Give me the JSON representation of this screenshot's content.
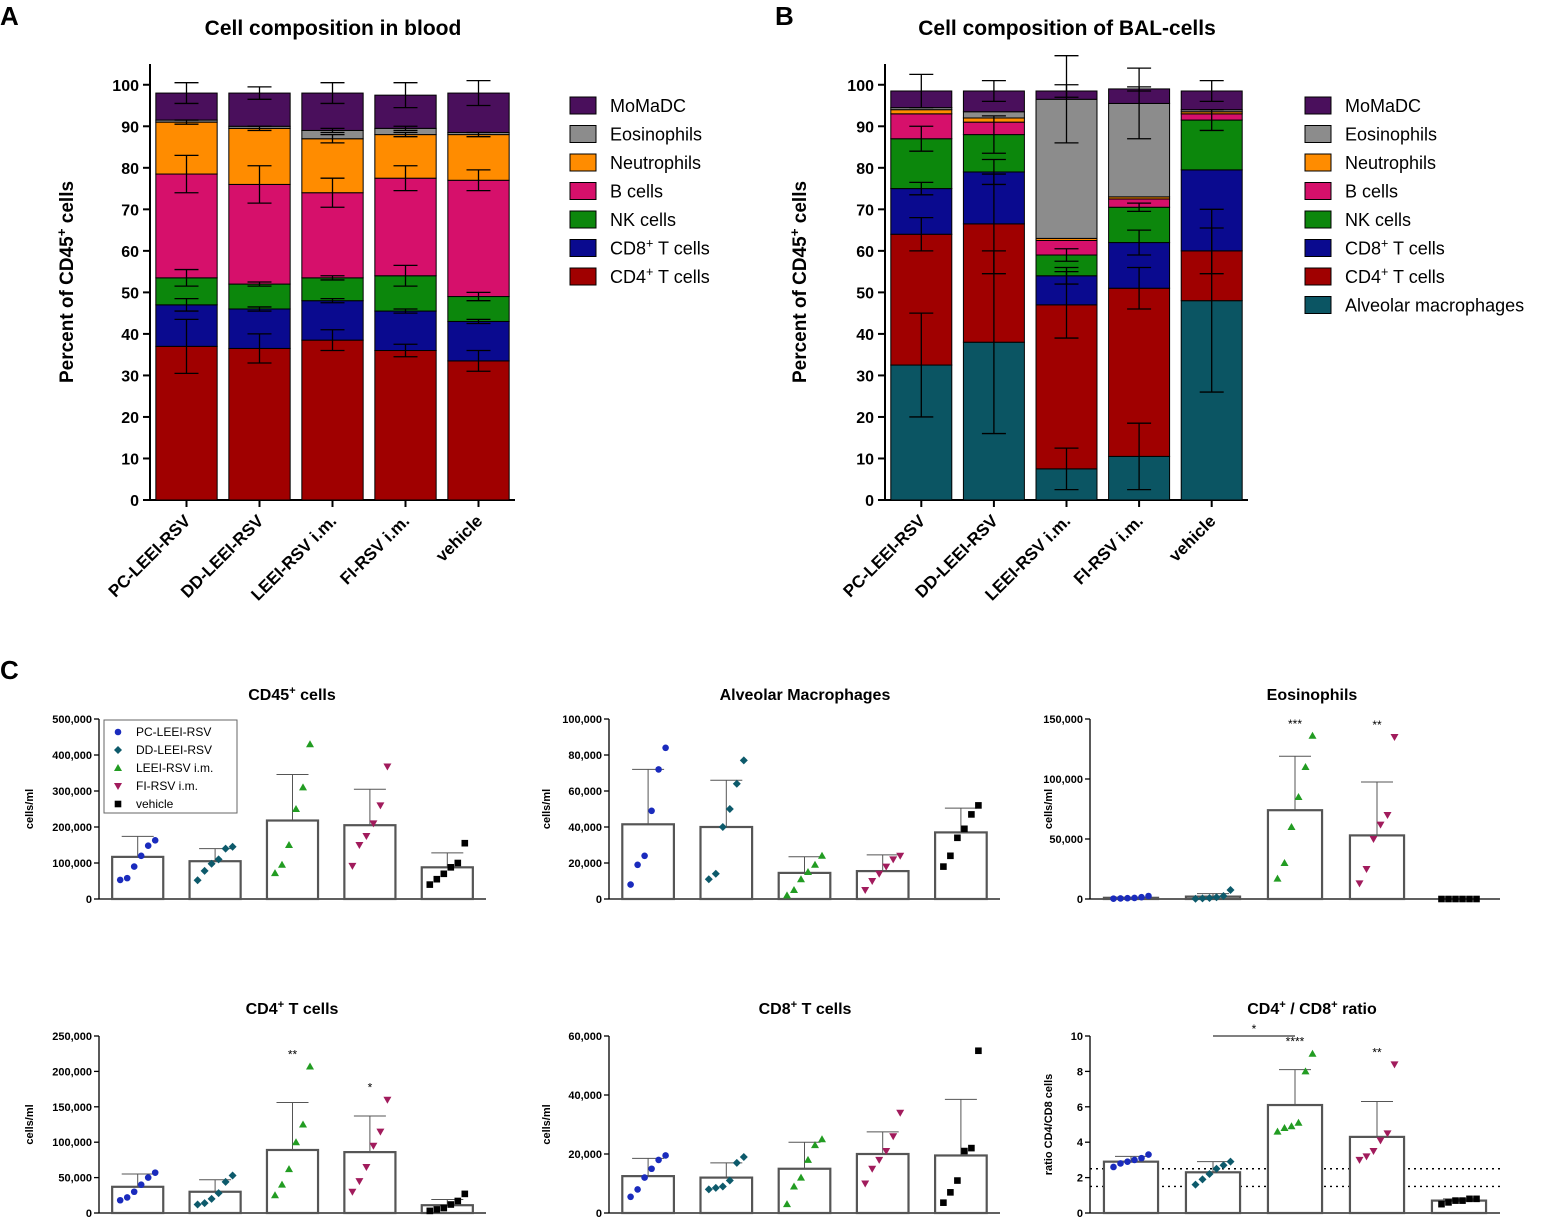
{
  "panels": {
    "A": "A",
    "B": "B",
    "C": "C"
  },
  "colors": {
    "MoMaDC": "#4a0f5c",
    "Eosinophils": "#8c8c8c",
    "Neutrophils": "#ff8c00",
    "B cells": "#d6106b",
    "NK cells": "#0c870c",
    "CD8": "#0a0a8f",
    "CD4": "#a00000",
    "AM": "#0b5563",
    "PC-LEEI-RSV": "#1a2bbd",
    "DD-LEEI-RSV": "#0d5a6b",
    "LEEI-RSV i.m.": "#229c22",
    "FI-RSV i.m.": "#a11b5c",
    "vehicle": "#000000"
  },
  "chart_data": [
    {
      "id": "A",
      "type": "bar",
      "stacked": true,
      "title": "Cell composition in blood",
      "ylabel": "Percent of CD45",
      "ylabel_sup": "+",
      "ylabel_tail": " cells",
      "ylim": [
        0,
        105
      ],
      "yticks": [
        0,
        10,
        20,
        30,
        40,
        50,
        60,
        70,
        80,
        90,
        100
      ],
      "categories": [
        "PC-LEEI-RSV",
        "DD-LEEI-RSV",
        "LEEI-RSV i.m.",
        "FI-RSV i.m.",
        "vehicle"
      ],
      "series": [
        {
          "name": "CD4+ T cells",
          "key": "CD4",
          "values": [
            37,
            36.5,
            38.5,
            36,
            33.5
          ],
          "err": [
            6.5,
            3.5,
            2.5,
            1.5,
            2.5
          ]
        },
        {
          "name": "CD8+ T cells",
          "key": "CD8",
          "values": [
            10,
            9.5,
            9.5,
            9.5,
            9.5
          ],
          "err": [
            1.5,
            0.5,
            0.5,
            0.5,
            0.5
          ]
        },
        {
          "name": "NK cells",
          "key": "NK cells",
          "values": [
            6.5,
            6,
            5.5,
            8.5,
            6
          ],
          "err": [
            2,
            0.5,
            0.5,
            2.5,
            1
          ]
        },
        {
          "name": "B cells",
          "key": "B cells",
          "values": [
            25,
            24,
            20.5,
            23.5,
            28
          ],
          "err": [
            4.5,
            4.5,
            3.5,
            3,
            2.5
          ]
        },
        {
          "name": "Neutrophils",
          "key": "Neutrophils",
          "values": [
            12.5,
            13.5,
            13,
            10.5,
            11
          ],
          "err": [
            0.5,
            0.5,
            1,
            0.5,
            0.5
          ]
        },
        {
          "name": "Eosinophils",
          "key": "Eosinophils",
          "values": [
            0.5,
            0.5,
            2,
            1.5,
            0.5
          ],
          "err": [
            0,
            0,
            0.5,
            0.5,
            0
          ]
        },
        {
          "name": "MoMaDC",
          "key": "MoMaDC",
          "values": [
            6.5,
            8,
            9,
            8,
            9.5
          ],
          "err": [
            2.5,
            1.5,
            2.5,
            3,
            3
          ]
        }
      ],
      "legend": [
        {
          "label": "MoMaDC",
          "sup": "",
          "tail": "",
          "key": "MoMaDC"
        },
        {
          "label": "Eosinophils",
          "sup": "",
          "tail": "",
          "key": "Eosinophils"
        },
        {
          "label": "Neutrophils",
          "sup": "",
          "tail": "",
          "key": "Neutrophils"
        },
        {
          "label": "B cells",
          "sup": "",
          "tail": "",
          "key": "B cells"
        },
        {
          "label": "NK cells",
          "sup": "",
          "tail": "",
          "key": "NK cells"
        },
        {
          "label": "CD8",
          "sup": "+",
          "tail": " T cells",
          "key": "CD8"
        },
        {
          "label": "CD4",
          "sup": "+",
          "tail": " T cells",
          "key": "CD4"
        }
      ]
    },
    {
      "id": "B",
      "type": "bar",
      "stacked": true,
      "title": "Cell composition of BAL-cells",
      "ylabel": "Percent of CD45",
      "ylabel_sup": "+",
      "ylabel_tail": " cells",
      "ylim": [
        0,
        105
      ],
      "yticks": [
        0,
        10,
        20,
        30,
        40,
        50,
        60,
        70,
        80,
        90,
        100
      ],
      "categories": [
        "PC-LEEI-RSV",
        "DD-LEEI-RSV",
        "LEEI-RSV i.m.",
        "FI-RSV i.m.",
        "vehicle"
      ],
      "series": [
        {
          "name": "Alveolar macrophages",
          "key": "AM",
          "values": [
            32.5,
            38,
            7.5,
            10.5,
            48
          ],
          "err": [
            12.5,
            22,
            5,
            8,
            22
          ]
        },
        {
          "name": "CD4+ T cells",
          "key": "CD4",
          "values": [
            31.5,
            28.5,
            39.5,
            40.5,
            12
          ],
          "err": [
            4,
            12,
            8,
            5,
            5.5
          ]
        },
        {
          "name": "CD8+ T cells",
          "key": "CD8",
          "values": [
            11,
            12.5,
            7,
            11,
            19.5
          ],
          "err": [
            1.5,
            3,
            2,
            3,
            0
          ]
        },
        {
          "name": "NK cells",
          "key": "NK cells",
          "values": [
            12,
            9,
            5,
            8.5,
            12
          ],
          "err": [
            3,
            4.5,
            1.5,
            1,
            2.5
          ]
        },
        {
          "name": "B cells",
          "key": "B cells",
          "values": [
            6,
            3,
            3.5,
            2,
            1.5
          ],
          "err": [
            0,
            0,
            0,
            0,
            0
          ]
        },
        {
          "name": "Neutrophils",
          "key": "Neutrophils",
          "values": [
            1,
            1,
            0.5,
            0.5,
            0.5
          ],
          "err": [
            0,
            0,
            0,
            0,
            0
          ]
        },
        {
          "name": "Eosinophils",
          "key": "Eosinophils",
          "values": [
            0.5,
            1.5,
            33.5,
            22.5,
            0.5
          ],
          "err": [
            0,
            0,
            10.5,
            8.5,
            0
          ]
        },
        {
          "name": "MoMaDC",
          "key": "MoMaDC",
          "values": [
            4,
            5,
            2,
            3.5,
            4.5
          ],
          "err": [
            4,
            2.5,
            1.5,
            0.5,
            2.5
          ]
        }
      ],
      "legend": [
        {
          "label": "MoMaDC",
          "sup": "",
          "tail": "",
          "key": "MoMaDC"
        },
        {
          "label": "Eosinophils",
          "sup": "",
          "tail": "",
          "key": "Eosinophils"
        },
        {
          "label": "Neutrophils",
          "sup": "",
          "tail": "",
          "key": "Neutrophils"
        },
        {
          "label": "B cells",
          "sup": "",
          "tail": "",
          "key": "B cells"
        },
        {
          "label": "NK cells",
          "sup": "",
          "tail": "",
          "key": "NK cells"
        },
        {
          "label": "CD8",
          "sup": "+",
          "tail": " T cells",
          "key": "CD8"
        },
        {
          "label": "CD4",
          "sup": "+",
          "tail": " T cells",
          "key": "CD4"
        },
        {
          "label": "Alveolar macrophages",
          "sup": "",
          "tail": "",
          "key": "AM"
        }
      ]
    },
    {
      "id": "C1",
      "type": "scatter",
      "title": "CD45",
      "title_sup": "+",
      "title_tail": " cells",
      "ylabel": "cells/ml",
      "ylim": [
        0,
        500000
      ],
      "yticks": [
        0,
        100000,
        200000,
        300000,
        400000,
        500000
      ],
      "ytick_labels": [
        "0",
        "100,000",
        "200,000",
        "300,000",
        "400,000",
        "500,000"
      ],
      "groups": [
        "PC-LEEI-RSV",
        "DD-LEEI-RSV",
        "LEEI-RSV i.m.",
        "FI-RSV i.m.",
        "vehicle"
      ],
      "means": [
        117000,
        105000,
        218000,
        205000,
        88000
      ],
      "sd": [
        57000,
        35000,
        128000,
        100000,
        40000
      ],
      "points": [
        [
          53000,
          58000,
          90000,
          120000,
          148000,
          163000
        ],
        [
          52000,
          78000,
          98000,
          110000,
          140000,
          145000
        ],
        [
          72000,
          95000,
          150000,
          250000,
          310000,
          430000
        ],
        [
          92000,
          150000,
          175000,
          210000,
          260000,
          368000
        ],
        [
          40000,
          55000,
          70000,
          88000,
          100000,
          155000
        ]
      ],
      "sig": [
        "",
        "",
        "",
        "",
        ""
      ],
      "legend": [
        "PC-LEEI-RSV",
        "DD-LEEI-RSV",
        "LEEI-RSV i.m.",
        "FI-RSV i.m.",
        "vehicle"
      ]
    },
    {
      "id": "C2",
      "type": "scatter",
      "title": "Alveolar Macrophages",
      "title_sup": "",
      "title_tail": "",
      "ylabel": "cells/ml",
      "ylim": [
        0,
        100000
      ],
      "yticks": [
        0,
        20000,
        40000,
        60000,
        80000,
        100000
      ],
      "ytick_labels": [
        "0",
        "20,000",
        "40,000",
        "60,000",
        "80,000",
        "100,000"
      ],
      "groups": [
        "PC-LEEI-RSV",
        "DD-LEEI-RSV",
        "LEEI-RSV i.m.",
        "FI-RSV i.m.",
        "vehicle"
      ],
      "means": [
        41500,
        40000,
        14500,
        15500,
        37000
      ],
      "sd": [
        30500,
        26000,
        9000,
        9000,
        13500
      ],
      "points": [
        [
          8000,
          19000,
          24000,
          49000,
          72000,
          84000
        ],
        [
          11000,
          14000,
          40000,
          50000,
          64000,
          77000
        ],
        [
          2000,
          5000,
          11000,
          15000,
          19000,
          24000
        ],
        [
          5000,
          10000,
          14000,
          18000,
          22000,
          24000
        ],
        [
          18000,
          24000,
          34000,
          39000,
          47000,
          52000
        ]
      ],
      "sig": [
        "",
        "",
        "",
        "",
        ""
      ]
    },
    {
      "id": "C3",
      "type": "scatter",
      "title": "Eosinophils",
      "title_sup": "",
      "title_tail": "",
      "ylabel": "cells/ml",
      "ylim": [
        0,
        150000
      ],
      "yticks": [
        0,
        50000,
        100000,
        150000
      ],
      "ytick_labels": [
        "0",
        "50,000",
        "100,000",
        "150,000"
      ],
      "groups": [
        "PC-LEEI-RSV",
        "DD-LEEI-RSV",
        "LEEI-RSV i.m.",
        "FI-RSV i.m.",
        "vehicle"
      ],
      "means": [
        1000,
        2000,
        74000,
        53000,
        0
      ],
      "sd": [
        500,
        2500,
        45000,
        44500,
        0
      ],
      "points": [
        [
          300,
          500,
          700,
          900,
          1500,
          2500
        ],
        [
          200,
          500,
          800,
          1500,
          2500,
          7500
        ],
        [
          17000,
          30000,
          60000,
          85000,
          110000,
          136000
        ],
        [
          13000,
          25000,
          50000,
          62000,
          70000,
          135000
        ],
        [
          0,
          0,
          0,
          0,
          0,
          0
        ]
      ],
      "sig": [
        "",
        "",
        "***",
        "**",
        ""
      ]
    },
    {
      "id": "C4",
      "type": "scatter",
      "title": "CD4",
      "title_sup": "+",
      "title_tail": " T cells",
      "ylabel": "cells/ml",
      "ylim": [
        0,
        250000
      ],
      "yticks": [
        0,
        50000,
        100000,
        150000,
        200000,
        250000
      ],
      "ytick_labels": [
        "0",
        "50,000",
        "100,000",
        "150,000",
        "200,000",
        "250,000"
      ],
      "groups": [
        "PC-LEEI-RSV",
        "DD-LEEI-RSV",
        "LEEI-RSV i.m.",
        "FI-RSV i.m.",
        "vehicle"
      ],
      "means": [
        37000,
        30000,
        89000,
        86000,
        11000
      ],
      "sd": [
        18000,
        17000,
        67000,
        51000,
        8000
      ],
      "points": [
        [
          18000,
          22000,
          30000,
          40000,
          50000,
          57000
        ],
        [
          12000,
          14000,
          20000,
          28000,
          44000,
          53000
        ],
        [
          25000,
          40000,
          62000,
          100000,
          125000,
          207000
        ],
        [
          30000,
          45000,
          65000,
          95000,
          115000,
          160000
        ],
        [
          3000,
          5000,
          7000,
          12000,
          17000,
          27000
        ]
      ],
      "sig": [
        "",
        "",
        "**",
        "*",
        ""
      ]
    },
    {
      "id": "C5",
      "type": "scatter",
      "title": "CD8",
      "title_sup": "+",
      "title_tail": " T cells",
      "ylabel": "cells/ml",
      "ylim": [
        0,
        60000
      ],
      "yticks": [
        0,
        20000,
        40000,
        60000
      ],
      "ytick_labels": [
        "0",
        "20,000",
        "40,000",
        "60,000"
      ],
      "groups": [
        "PC-LEEI-RSV",
        "DD-LEEI-RSV",
        "LEEI-RSV i.m.",
        "FI-RSV i.m.",
        "vehicle"
      ],
      "means": [
        12500,
        12000,
        15000,
        20000,
        19500
      ],
      "sd": [
        6000,
        5000,
        9000,
        7500,
        19000
      ],
      "points": [
        [
          5500,
          8000,
          12000,
          15000,
          18000,
          19500
        ],
        [
          8000,
          8500,
          9000,
          11000,
          17000,
          19000
        ],
        [
          3000,
          9000,
          12000,
          18000,
          23000,
          25000
        ],
        [
          10000,
          15000,
          18000,
          21000,
          26000,
          34000
        ],
        [
          3500,
          7000,
          11000,
          21000,
          22000,
          55000
        ]
      ],
      "sig": [
        "",
        "",
        "",
        "",
        ""
      ]
    },
    {
      "id": "C6",
      "type": "scatter",
      "title": "CD4",
      "title_sup": "+",
      "title_tail": " / CD8",
      "title_sup2": "+",
      "title_tail2": " ratio",
      "ylabel": "ratio CD4/CD8 cells",
      "ylim": [
        0,
        10
      ],
      "yticks": [
        0,
        2,
        4,
        6,
        8,
        10
      ],
      "ytick_labels": [
        "0",
        "2",
        "4",
        "6",
        "8",
        "10"
      ],
      "groups": [
        "PC-LEEI-RSV",
        "DD-LEEI-RSV",
        "LEEI-RSV i.m.",
        "FI-RSV i.m.",
        "vehicle"
      ],
      "means": [
        2.9,
        2.3,
        6.1,
        4.3,
        0.7
      ],
      "sd": [
        0.3,
        0.6,
        2.0,
        2.0,
        0.1
      ],
      "points": [
        [
          2.6,
          2.8,
          2.9,
          3.0,
          3.1,
          3.3
        ],
        [
          1.6,
          1.9,
          2.2,
          2.5,
          2.7,
          2.9
        ],
        [
          4.6,
          4.8,
          4.9,
          5.1,
          8.0,
          9.0
        ],
        [
          3.0,
          3.2,
          3.5,
          4.1,
          4.5,
          8.4
        ],
        [
          0.5,
          0.6,
          0.7,
          0.7,
          0.8,
          0.8
        ]
      ],
      "sig": [
        "",
        "",
        "****",
        "**",
        ""
      ],
      "bracket": {
        "label": "*",
        "from": 1,
        "to": 2,
        "y": 10.0
      },
      "reference_lines": [
        2.5,
        1.5
      ]
    }
  ]
}
